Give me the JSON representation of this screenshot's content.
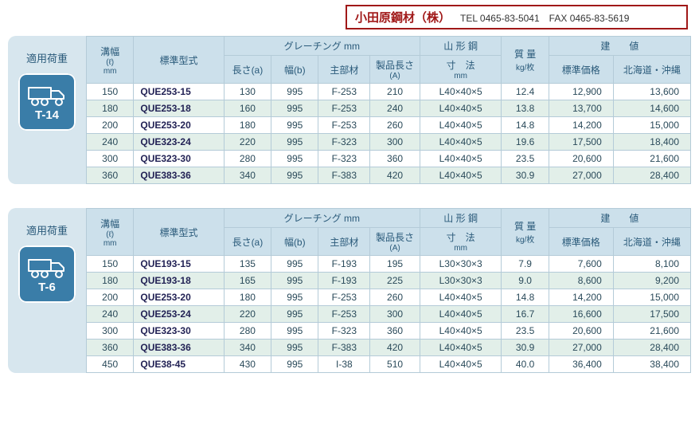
{
  "company": {
    "name": "小田原鋼材（株）",
    "tel_label": "TEL",
    "tel": "0465-83-5041",
    "fax_label": "FAX",
    "fax": "0465-83-5619"
  },
  "labels": {
    "load": "適用荷重",
    "groove": "溝幅",
    "groove_unit1": "(ℓ)",
    "groove_unit2": "mm",
    "model": "標準型式",
    "grating": "グレーチング mm",
    "len_a": "長さ(a)",
    "width_b": "幅(b)",
    "main": "主部材",
    "prod_len": "製品長さ",
    "prod_len_sub": "(A)",
    "angle": "山 形 鋼",
    "dim": "寸　法",
    "dim_unit": "mm",
    "weight": "質 量",
    "weight_unit": "kg/枚",
    "price": "建　　値",
    "std_price": "標準価格",
    "hok_price": "北海道・沖縄"
  },
  "sections": [
    {
      "t_class": "T-14",
      "rows": [
        {
          "groove": "150",
          "model": "QUE253-15",
          "a": "130",
          "b": "995",
          "main": "F-253",
          "A": "210",
          "angle": "L40×40×5",
          "wt": "12.4",
          "p1": "12,900",
          "p2": "13,600",
          "alt": false
        },
        {
          "groove": "180",
          "model": "QUE253-18",
          "a": "160",
          "b": "995",
          "main": "F-253",
          "A": "240",
          "angle": "L40×40×5",
          "wt": "13.8",
          "p1": "13,700",
          "p2": "14,600",
          "alt": true
        },
        {
          "groove": "200",
          "model": "QUE253-20",
          "a": "180",
          "b": "995",
          "main": "F-253",
          "A": "260",
          "angle": "L40×40×5",
          "wt": "14.8",
          "p1": "14,200",
          "p2": "15,000",
          "alt": false
        },
        {
          "groove": "240",
          "model": "QUE323-24",
          "a": "220",
          "b": "995",
          "main": "F-323",
          "A": "300",
          "angle": "L40×40×5",
          "wt": "19.6",
          "p1": "17,500",
          "p2": "18,400",
          "alt": true
        },
        {
          "groove": "300",
          "model": "QUE323-30",
          "a": "280",
          "b": "995",
          "main": "F-323",
          "A": "360",
          "angle": "L40×40×5",
          "wt": "23.5",
          "p1": "20,600",
          "p2": "21,600",
          "alt": false
        },
        {
          "groove": "360",
          "model": "QUE383-36",
          "a": "340",
          "b": "995",
          "main": "F-383",
          "A": "420",
          "angle": "L40×40×5",
          "wt": "30.9",
          "p1": "27,000",
          "p2": "28,400",
          "alt": true
        }
      ]
    },
    {
      "t_class": "T-6",
      "rows": [
        {
          "groove": "150",
          "model": "QUE193-15",
          "a": "135",
          "b": "995",
          "main": "F-193",
          "A": "195",
          "angle": "L30×30×3",
          "wt": "7.9",
          "p1": "7,600",
          "p2": "8,100",
          "alt": false
        },
        {
          "groove": "180",
          "model": "QUE193-18",
          "a": "165",
          "b": "995",
          "main": "F-193",
          "A": "225",
          "angle": "L30×30×3",
          "wt": "9.0",
          "p1": "8,600",
          "p2": "9,200",
          "alt": true
        },
        {
          "groove": "200",
          "model": "QUE253-20",
          "a": "180",
          "b": "995",
          "main": "F-253",
          "A": "260",
          "angle": "L40×40×5",
          "wt": "14.8",
          "p1": "14,200",
          "p2": "15,000",
          "alt": false
        },
        {
          "groove": "240",
          "model": "QUE253-24",
          "a": "220",
          "b": "995",
          "main": "F-253",
          "A": "300",
          "angle": "L40×40×5",
          "wt": "16.7",
          "p1": "16,600",
          "p2": "17,500",
          "alt": true
        },
        {
          "groove": "300",
          "model": "QUE323-30",
          "a": "280",
          "b": "995",
          "main": "F-323",
          "A": "360",
          "angle": "L40×40×5",
          "wt": "23.5",
          "p1": "20,600",
          "p2": "21,600",
          "alt": false
        },
        {
          "groove": "360",
          "model": "QUE383-36",
          "a": "340",
          "b": "995",
          "main": "F-383",
          "A": "420",
          "angle": "L40×40×5",
          "wt": "30.9",
          "p1": "27,000",
          "p2": "28,400",
          "alt": true
        },
        {
          "groove": "450",
          "model": "QUE38-45",
          "a": "430",
          "b": "995",
          "main": "I-38",
          "A": "510",
          "angle": "L40×40×5",
          "wt": "40.0",
          "p1": "36,400",
          "p2": "38,400",
          "alt": false
        }
      ]
    }
  ],
  "style": {
    "header_bg": "#cce0eb",
    "alt_bg": "#e2efe9",
    "border": "#b4cbd8",
    "badge_bg": "#3a7da8",
    "company_border": "#a01818"
  }
}
